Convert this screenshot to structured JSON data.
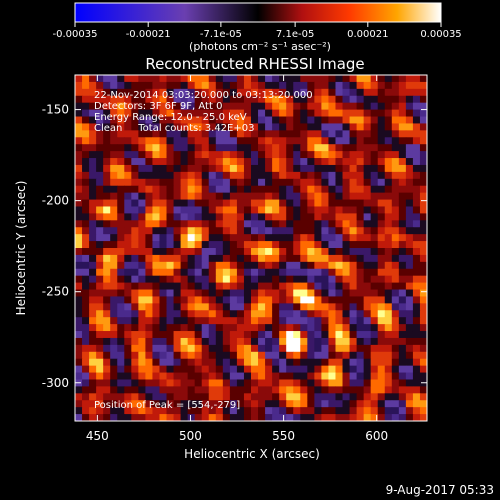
{
  "chart_data": {
    "type": "heatmap",
    "title": "Reconstructed RHESSI Image",
    "xlabel": "Heliocentric X (arcsec)",
    "ylabel": "Heliocentric Y (arcsec)",
    "xlim": [
      438,
      627
    ],
    "ylim": [
      -321,
      -131
    ],
    "x_ticks": [
      450,
      500,
      550,
      600
    ],
    "y_ticks": [
      -150,
      -200,
      -250,
      -300
    ],
    "x_tick_labels": [
      "450",
      "500",
      "550",
      "600"
    ],
    "y_tick_labels": [
      "-150",
      "-200",
      "-250",
      "-300"
    ],
    "colorbar": {
      "range": [
        -0.00035,
        0.00035
      ],
      "tick_values": [
        -0.00035,
        -0.00021,
        -7.1e-05,
        7.1e-05,
        0.00021,
        0.00035
      ],
      "tick_labels": [
        "-0.00035",
        "-0.00021",
        "-7.1e-05",
        "7.1e-05",
        "0.00021",
        "0.00035"
      ],
      "units": "(photons cm⁻² s⁻¹ asec⁻²)"
    },
    "annotations": [
      "22-Nov-2014 03:03:20.000 to 03:13:20.000",
      "Detectors: 3F 6F 9F, Att 0",
      "Energy Range: 12.0 - 25.0 keV",
      "Clean     Total counts: 3.42E+03"
    ],
    "peak_label": "Position of Peak = [554,-279]",
    "peak": [
      554,
      -279
    ],
    "grid": false,
    "colormap": [
      "#0000ff",
      "#5a2a9a",
      "#000000",
      "#a01010",
      "#ff3000",
      "#ff9a00",
      "#ffff80",
      "#ffffff"
    ]
  },
  "footer": {
    "date": "9-Aug-2017 05:33"
  }
}
